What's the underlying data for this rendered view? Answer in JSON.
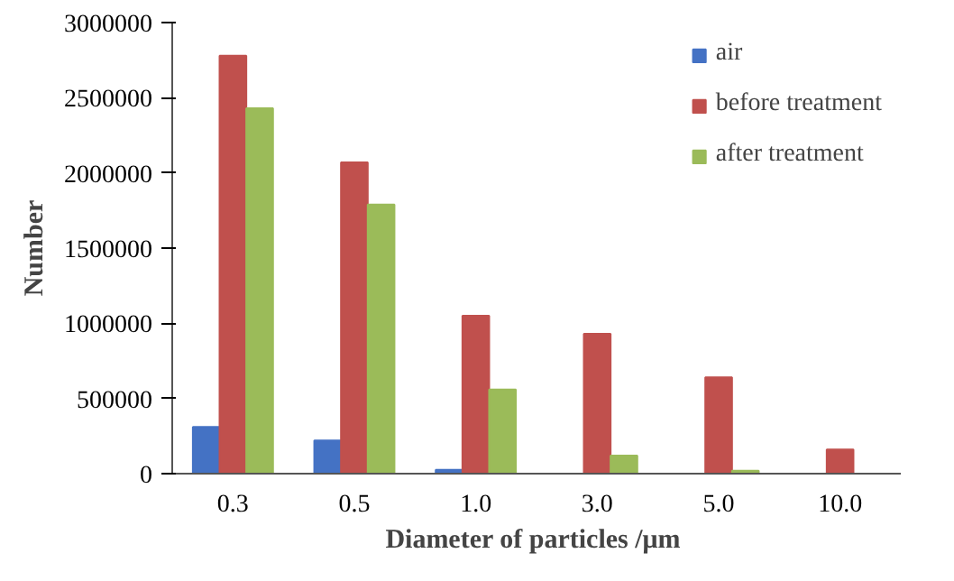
{
  "chart_data": {
    "type": "bar",
    "xlabel": "Diameter of particles  /μm",
    "ylabel": "Number",
    "categories": [
      "0.3",
      "0.5",
      "1.0",
      "3.0",
      "5.0",
      "10.0"
    ],
    "series": [
      {
        "name": "air",
        "color": "#4472c4",
        "values": [
          310000,
          220000,
          25000,
          0,
          0,
          0
        ]
      },
      {
        "name": "before treatment",
        "color": "#c0504d",
        "values": [
          2780000,
          2070000,
          1050000,
          930000,
          640000,
          160000
        ]
      },
      {
        "name": "after treatment",
        "color": "#9bbb59",
        "values": [
          2430000,
          1790000,
          560000,
          120000,
          20000,
          0
        ]
      }
    ],
    "ylim": [
      0,
      3000000
    ],
    "yticks": [
      0,
      500000,
      1000000,
      1500000,
      2000000,
      2500000,
      3000000
    ],
    "grid": false,
    "legend": "top right"
  }
}
